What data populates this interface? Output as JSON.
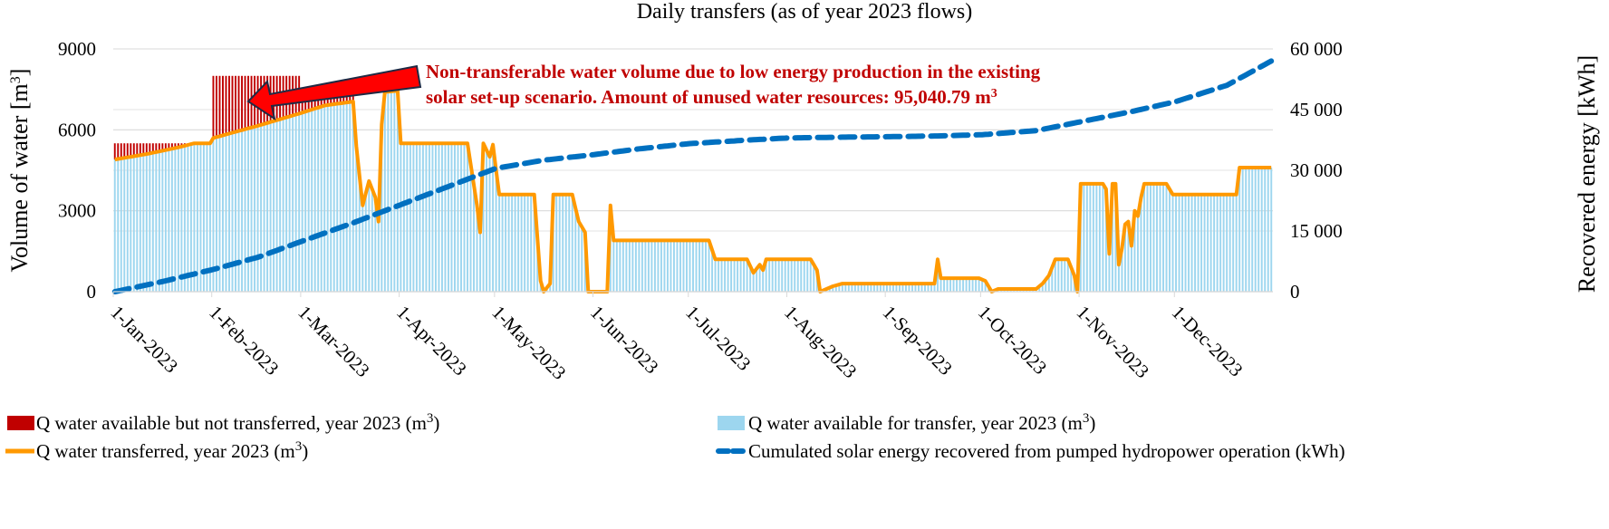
{
  "chart_data": {
    "type": "bar",
    "title": "Daily transfers (as of year 2023 flows)",
    "xlabel": "",
    "ylabel": "Volume of water [m3]",
    "ylabel_right": "Recovered energy [kWh]",
    "ylim": [
      0,
      9000
    ],
    "ylim_right": [
      0,
      60000
    ],
    "yticks": [
      "0",
      "3000",
      "6000",
      "9000"
    ],
    "yticks_right": [
      "0",
      "15 000",
      "30 000",
      "45 000",
      "60 000"
    ],
    "grid": true,
    "x_tick_labels": [
      "1-Jan-2023",
      "1-Feb-2023",
      "1-Mar-2023",
      "1-Apr-2023",
      "1-May-2023",
      "1-Jun-2023",
      "1-Jul-2023",
      "1-Aug-2023",
      "1-Sep-2023",
      "1-Oct-2023",
      "1-Nov-2023",
      "1-Dec-2023"
    ],
    "x_tick_days": [
      0,
      31,
      59,
      90,
      120,
      151,
      181,
      212,
      243,
      273,
      304,
      334
    ],
    "days_in_year": 365,
    "annotation": {
      "line1": "Non-transferable water volume due to low energy production in the existing",
      "line2": "solar set-up scenario. Amount of unused water resources: 95,040.79 m",
      "sup": "3"
    },
    "series": [
      {
        "name": "Q water available but not transferred, year 2023 (m3)",
        "kind": "bar",
        "color": "#c00000",
        "keypoints_total": [
          [
            0,
            5500
          ],
          [
            30,
            5500
          ],
          [
            31,
            8000
          ],
          [
            58,
            8000
          ],
          [
            59,
            7300
          ],
          [
            75,
            7300
          ]
        ]
      },
      {
        "name": "Q water available for transfer, year 2023 (m3)",
        "kind": "bar",
        "color": "#9dd6ef",
        "keypoints": [
          [
            0,
            4900
          ],
          [
            10,
            5100
          ],
          [
            20,
            5350
          ],
          [
            25,
            5500
          ],
          [
            30,
            5500
          ],
          [
            31,
            5700
          ],
          [
            45,
            6150
          ],
          [
            58,
            6600
          ],
          [
            66,
            6900
          ],
          [
            75,
            7050
          ],
          [
            76,
            5400
          ],
          [
            78,
            3200
          ],
          [
            80,
            4100
          ],
          [
            82,
            3500
          ],
          [
            83,
            2600
          ],
          [
            84,
            6200
          ],
          [
            85,
            7400
          ],
          [
            89,
            7450
          ],
          [
            90,
            5500
          ],
          [
            111,
            5500
          ],
          [
            114,
            3200
          ],
          [
            115,
            2200
          ],
          [
            116,
            5500
          ],
          [
            118,
            5000
          ],
          [
            119,
            5450
          ],
          [
            120,
            4500
          ],
          [
            121,
            3600
          ],
          [
            132,
            3600
          ],
          [
            134,
            400
          ],
          [
            135,
            0
          ],
          [
            137,
            300
          ],
          [
            138,
            3600
          ],
          [
            144,
            3600
          ],
          [
            146,
            2600
          ],
          [
            147,
            2400
          ],
          [
            148,
            2200
          ],
          [
            149,
            0
          ],
          [
            155,
            0
          ],
          [
            156,
            3200
          ],
          [
            157,
            1900
          ],
          [
            187,
            1900
          ],
          [
            189,
            1200
          ],
          [
            199,
            1200
          ],
          [
            201,
            700
          ],
          [
            203,
            1000
          ],
          [
            204,
            800
          ],
          [
            205,
            1200
          ],
          [
            219,
            1200
          ],
          [
            221,
            800
          ],
          [
            222,
            0
          ],
          [
            224,
            100
          ],
          [
            226,
            200
          ],
          [
            229,
            300
          ],
          [
            258,
            300
          ],
          [
            259,
            1200
          ],
          [
            260,
            500
          ],
          [
            272,
            500
          ],
          [
            274,
            400
          ],
          [
            276,
            0
          ],
          [
            278,
            100
          ],
          [
            290,
            100
          ],
          [
            292,
            300
          ],
          [
            294,
            600
          ],
          [
            296,
            1200
          ],
          [
            300,
            1200
          ],
          [
            302,
            600
          ],
          [
            303,
            0
          ],
          [
            304,
            4000
          ],
          [
            311,
            4000
          ],
          [
            312,
            3800
          ],
          [
            313,
            1400
          ],
          [
            314,
            4000
          ],
          [
            315,
            4000
          ],
          [
            316,
            1000
          ],
          [
            317,
            1600
          ],
          [
            318,
            2500
          ],
          [
            319,
            2600
          ],
          [
            320,
            1700
          ],
          [
            321,
            3000
          ],
          [
            322,
            2800
          ],
          [
            323,
            3500
          ],
          [
            324,
            4000
          ],
          [
            331,
            4000
          ],
          [
            333,
            3600
          ],
          [
            353,
            3600
          ],
          [
            354,
            4600
          ],
          [
            364,
            4600
          ]
        ]
      },
      {
        "name": "Q water transferred, year 2023 (m3)",
        "kind": "line",
        "color": "#ff9900",
        "same_as": "Q water available for transfer, year 2023 (m3)"
      },
      {
        "name": "Cumulated solar energy recovered from pumped hydropower operation (kWh)",
        "kind": "line-dashed",
        "axis": "right",
        "color": "#0070c0",
        "keypoints": [
          [
            0,
            0
          ],
          [
            15,
            2500
          ],
          [
            31,
            5500
          ],
          [
            45,
            8500
          ],
          [
            59,
            12500
          ],
          [
            75,
            17000
          ],
          [
            90,
            21500
          ],
          [
            105,
            26000
          ],
          [
            120,
            30500
          ],
          [
            135,
            32500
          ],
          [
            150,
            33800
          ],
          [
            165,
            35300
          ],
          [
            181,
            36600
          ],
          [
            200,
            37500
          ],
          [
            212,
            38000
          ],
          [
            230,
            38200
          ],
          [
            243,
            38300
          ],
          [
            260,
            38500
          ],
          [
            273,
            38800
          ],
          [
            290,
            39800
          ],
          [
            304,
            42000
          ],
          [
            320,
            44500
          ],
          [
            334,
            47000
          ],
          [
            350,
            51000
          ],
          [
            364,
            57000
          ]
        ]
      }
    ]
  },
  "legend": [
    {
      "label": "Q water available but not transferred, year 2023 (m",
      "sup": "3",
      "tail": ")",
      "swatch": "box",
      "color": "#c00000"
    },
    {
      "label": "Q water available for transfer, year 2023 (m",
      "sup": "3",
      "tail": ")",
      "swatch": "box",
      "color": "#9dd6ef"
    },
    {
      "label": "Q water transferred, year 2023 (m",
      "sup": "3",
      "tail": ")",
      "swatch": "line",
      "color": "#ff9900"
    },
    {
      "label": "Cumulated solar energy recovered from pumped hydropower operation (kWh)",
      "sup": "",
      "tail": "",
      "swatch": "dash",
      "color": "#0070c0"
    }
  ],
  "axis_labels": {
    "left_main": "Volume of water [m",
    "left_sup": "3",
    "left_tail": "]",
    "right": "Recovered energy [kWh]"
  }
}
